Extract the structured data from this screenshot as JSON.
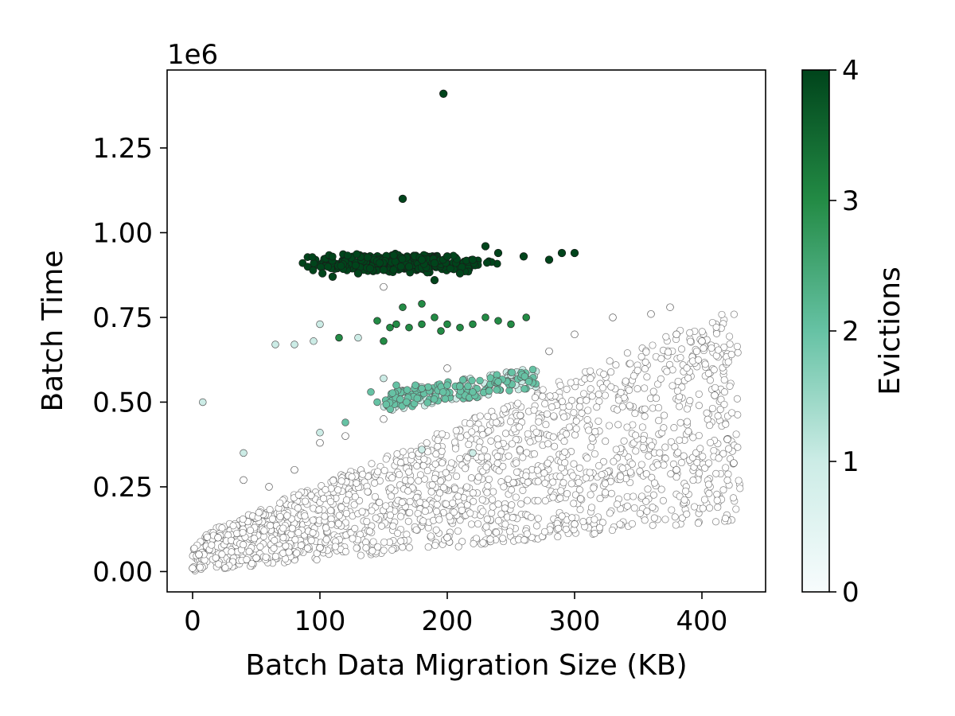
{
  "chart_data": {
    "type": "scatter",
    "xlabel": "Batch Data Migration Size (KB)",
    "ylabel": "Batch Time",
    "y_offset_label": "1e6",
    "xlim": [
      -20,
      450
    ],
    "ylim": [
      -0.06,
      1.48
    ],
    "x_ticks": [
      0,
      100,
      200,
      300,
      400
    ],
    "x_tick_labels": [
      "0",
      "100",
      "200",
      "300",
      "400"
    ],
    "y_ticks": [
      0.0,
      0.25,
      0.5,
      0.75,
      1.0,
      1.25
    ],
    "y_tick_labels": [
      "0.00",
      "0.25",
      "0.50",
      "0.75",
      "1.00",
      "1.25"
    ],
    "grid": false,
    "colorbar": {
      "label": "Evictions",
      "range": [
        0,
        4
      ],
      "ticks": [
        0,
        1,
        2,
        3,
        4
      ],
      "tick_labels": [
        "0",
        "1",
        "2",
        "3",
        "4"
      ],
      "colors": [
        "#f7fcfd",
        "#ccece6",
        "#66c2a4",
        "#238b45",
        "#00441b"
      ]
    },
    "point_colors_by_evictions": [
      "#ffffff",
      "#ccece6",
      "#66c2a4",
      "#238b45",
      "#00441b"
    ],
    "point_edge_color": "#555555",
    "series": [
      {
        "evictions": 0,
        "description": "dense band between lower bound y≈0.0+0.0004x and upper bound y≈0.1+0.0016x (x in KB, y in 1e6)",
        "x_range": [
          0,
          425
        ],
        "points": [
          [
            0,
            0.01
          ],
          [
            5,
            0.05
          ],
          [
            20,
            0.1
          ],
          [
            40,
            0.27
          ],
          [
            60,
            0.25
          ],
          [
            80,
            0.3
          ],
          [
            100,
            0.38
          ],
          [
            120,
            0.4
          ],
          [
            150,
            0.45
          ],
          [
            180,
            0.52
          ],
          [
            200,
            0.6
          ],
          [
            250,
            0.55
          ],
          [
            280,
            0.65
          ],
          [
            300,
            0.7
          ],
          [
            330,
            0.75
          ],
          [
            360,
            0.76
          ],
          [
            375,
            0.78
          ],
          [
            380,
            0.7
          ],
          [
            400,
            0.68
          ],
          [
            410,
            0.52
          ],
          [
            420,
            0.39
          ],
          [
            425,
            0.32
          ],
          [
            380,
            0.3
          ],
          [
            300,
            0.14
          ],
          [
            200,
            0.1
          ],
          [
            100,
            0.07
          ],
          [
            50,
            0.04
          ],
          [
            150,
            0.84
          ]
        ]
      },
      {
        "evictions": 1,
        "points": [
          [
            8,
            0.5
          ],
          [
            40,
            0.35
          ],
          [
            65,
            0.67
          ],
          [
            80,
            0.67
          ],
          [
            95,
            0.68
          ],
          [
            100,
            0.73
          ],
          [
            130,
            0.69
          ],
          [
            150,
            0.57
          ],
          [
            200,
            0.55
          ],
          [
            250,
            0.58
          ],
          [
            180,
            0.36
          ],
          [
            220,
            0.35
          ],
          [
            100,
            0.41
          ]
        ]
      },
      {
        "evictions": 2,
        "points": [
          [
            120,
            0.44
          ],
          [
            140,
            0.53
          ],
          [
            160,
            0.55
          ],
          [
            180,
            0.54
          ],
          [
            200,
            0.55
          ],
          [
            220,
            0.53
          ],
          [
            240,
            0.56
          ],
          [
            145,
            0.5
          ],
          [
            175,
            0.55
          ]
        ]
      },
      {
        "evictions": 3,
        "points": [
          [
            115,
            0.69
          ],
          [
            145,
            0.74
          ],
          [
            150,
            0.68
          ],
          [
            155,
            0.72
          ],
          [
            160,
            0.73
          ],
          [
            170,
            0.72
          ],
          [
            180,
            0.73
          ],
          [
            190,
            0.75
          ],
          [
            195,
            0.71
          ],
          [
            200,
            0.73
          ],
          [
            210,
            0.72
          ],
          [
            220,
            0.73
          ],
          [
            230,
            0.75
          ],
          [
            240,
            0.74
          ],
          [
            250,
            0.73
          ],
          [
            262,
            0.75
          ],
          [
            165,
            0.78
          ],
          [
            180,
            0.79
          ]
        ]
      },
      {
        "evictions": 4,
        "points": [
          [
            197,
            1.41
          ],
          [
            165,
            1.1
          ],
          [
            102,
            0.88
          ],
          [
            110,
            0.87
          ],
          [
            130,
            0.88
          ],
          [
            150,
            0.89
          ],
          [
            170,
            0.9
          ],
          [
            180,
            0.92
          ],
          [
            190,
            0.91
          ],
          [
            200,
            0.93
          ],
          [
            220,
            0.92
          ],
          [
            240,
            0.94
          ],
          [
            260,
            0.93
          ],
          [
            280,
            0.92
          ],
          [
            290,
            0.94
          ],
          [
            300,
            0.94
          ],
          [
            190,
            0.86
          ],
          [
            210,
            0.88
          ],
          [
            230,
            0.96
          ]
        ]
      }
    ]
  }
}
